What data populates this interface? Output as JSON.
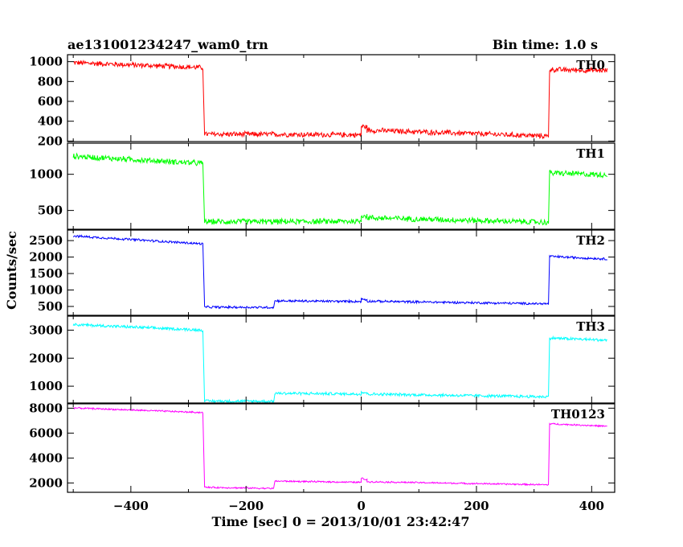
{
  "chart_data": {
    "type": "line",
    "title": "ae131001234247_wam0_trn",
    "subtitle": "Bin time: 1.0 s",
    "xlabel": "Time [sec] 0 = 2013/10/01 23:42:47",
    "ylabel": "Counts/sec",
    "xlim": [
      -510,
      440
    ],
    "x_ticks": [
      -400,
      -200,
      0,
      200,
      400
    ],
    "grid": false,
    "legend": "none",
    "panels": [
      {
        "name": "TH0",
        "color": "#ff0000",
        "ylim": [
          195,
          1070
        ],
        "y_ticks": [
          200,
          400,
          600,
          800,
          1000
        ],
        "noise": 30,
        "segments": [
          {
            "x": [
              -500,
              -275
            ],
            "y": [
              990,
              940
            ]
          },
          {
            "x": [
              -272,
              -150
            ],
            "y": [
              270,
              268
            ]
          },
          {
            "x": [
              -150,
              0
            ],
            "y": [
              268,
              262
            ]
          },
          {
            "x": [
              0,
              10
            ],
            "y": [
              350,
              340
            ]
          },
          {
            "x": [
              10,
              325
            ],
            "y": [
              310,
              250
            ]
          },
          {
            "x": [
              327,
              427
            ],
            "y": [
              920,
              910
            ]
          }
        ]
      },
      {
        "name": "TH1",
        "color": "#00ff00",
        "ylim": [
          240,
          1430
        ],
        "y_ticks": [
          500,
          1000
        ],
        "y_tick_labels": [
          "500",
          "1000"
        ],
        "noise": 45,
        "segments": [
          {
            "x": [
              -500,
              -275
            ],
            "y": [
              1250,
              1150
            ]
          },
          {
            "x": [
              -272,
              -150
            ],
            "y": [
              345,
              345
            ]
          },
          {
            "x": [
              -150,
              0
            ],
            "y": [
              345,
              350
            ]
          },
          {
            "x": [
              0,
              10
            ],
            "y": [
              440,
              420
            ]
          },
          {
            "x": [
              10,
              325
            ],
            "y": [
              400,
              335
            ]
          },
          {
            "x": [
              327,
              427
            ],
            "y": [
              1020,
              990
            ]
          }
        ]
      },
      {
        "name": "TH2",
        "color": "#0000ff",
        "ylim": [
          230,
          2820
        ],
        "y_ticks": [
          500,
          1000,
          1500,
          2000,
          2500
        ],
        "noise": 40,
        "segments": [
          {
            "x": [
              -500,
              -275
            ],
            "y": [
              2640,
              2400
            ]
          },
          {
            "x": [
              -272,
              -152
            ],
            "y": [
              480,
              470
            ]
          },
          {
            "x": [
              -150,
              0
            ],
            "y": [
              670,
              650
            ]
          },
          {
            "x": [
              0,
              10
            ],
            "y": [
              730,
              700
            ]
          },
          {
            "x": [
              10,
              325
            ],
            "y": [
              660,
              580
            ]
          },
          {
            "x": [
              327,
              427
            ],
            "y": [
              2020,
              1940
            ]
          }
        ]
      },
      {
        "name": "TH3",
        "color": "#00ffff",
        "ylim": [
          400,
          3500
        ],
        "y_ticks": [
          1000,
          2000,
          3000
        ],
        "noise": 60,
        "segments": [
          {
            "x": [
              -500,
              -275
            ],
            "y": [
              3200,
              3000
            ]
          },
          {
            "x": [
              -272,
              -152
            ],
            "y": [
              470,
              460
            ]
          },
          {
            "x": [
              -150,
              0
            ],
            "y": [
              750,
              720
            ]
          },
          {
            "x": [
              0,
              10
            ],
            "y": [
              790,
              760
            ]
          },
          {
            "x": [
              10,
              325
            ],
            "y": [
              720,
              620
            ]
          },
          {
            "x": [
              327,
              427
            ],
            "y": [
              2720,
              2640
            ]
          }
        ]
      },
      {
        "name": "TH0123",
        "color": "#ff00ff",
        "ylim": [
          1250,
          8350
        ],
        "y_ticks": [
          2000,
          4000,
          6000,
          8000
        ],
        "noise": 70,
        "segments": [
          {
            "x": [
              -500,
              -275
            ],
            "y": [
              8020,
              7650
            ]
          },
          {
            "x": [
              -272,
              -152
            ],
            "y": [
              1650,
              1560
            ]
          },
          {
            "x": [
              -150,
              0
            ],
            "y": [
              2150,
              2050
            ]
          },
          {
            "x": [
              0,
              10
            ],
            "y": [
              2380,
              2250
            ]
          },
          {
            "x": [
              10,
              325
            ],
            "y": [
              2100,
              1850
            ]
          },
          {
            "x": [
              327,
              427
            ],
            "y": [
              6750,
              6550
            ]
          }
        ]
      }
    ]
  }
}
